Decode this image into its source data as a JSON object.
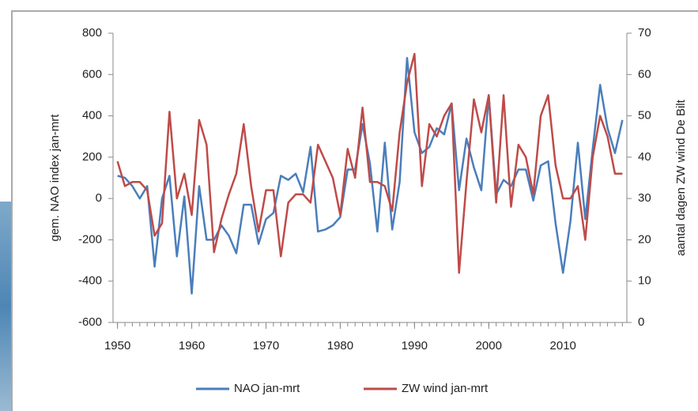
{
  "chart_data": {
    "type": "line",
    "y_label": "gem. NAO index jan-mrt",
    "y2_label": "aantal dagen ZW wind De Bilt",
    "x": [
      1950,
      1951,
      1952,
      1953,
      1954,
      1955,
      1956,
      1957,
      1958,
      1959,
      1960,
      1961,
      1962,
      1963,
      1964,
      1965,
      1966,
      1967,
      1968,
      1969,
      1970,
      1971,
      1972,
      1973,
      1974,
      1975,
      1976,
      1977,
      1978,
      1979,
      1980,
      1981,
      1982,
      1983,
      1984,
      1985,
      1986,
      1987,
      1988,
      1989,
      1990,
      1991,
      1992,
      1993,
      1994,
      1995,
      1996,
      1997,
      1998,
      1999,
      2000,
      2001,
      2002,
      2003,
      2004,
      2005,
      2006,
      2007,
      2008,
      2009,
      2010,
      2011,
      2012,
      2013,
      2014,
      2015,
      2016,
      2017,
      2018
    ],
    "series": [
      {
        "name": "NAO jan-mrt",
        "color": "#4a7ebb",
        "values": [
          110,
          100,
          60,
          0,
          60,
          -330,
          0,
          110,
          -280,
          10,
          -460,
          60,
          -200,
          -200,
          -130,
          -180,
          -265,
          -30,
          -30,
          -220,
          -100,
          -70,
          110,
          90,
          120,
          30,
          250,
          -160,
          -150,
          -130,
          -90,
          140,
          140,
          360,
          170,
          -160,
          270,
          -150,
          80,
          680,
          320,
          220,
          250,
          340,
          310,
          460,
          40,
          290,
          150,
          40,
          500,
          20,
          90,
          60,
          140,
          140,
          -10,
          160,
          180,
          -120,
          -360,
          -110,
          270,
          -100,
          240,
          550,
          340,
          220,
          380
        ]
      },
      {
        "name": "ZW wind jan-mrt",
        "color": "#be4b48",
        "axis": "y2",
        "values": [
          39,
          33,
          34,
          34,
          32,
          21,
          24,
          51,
          30,
          36,
          26,
          49,
          43,
          17,
          25,
          31,
          36,
          48,
          33,
          22,
          32,
          32,
          16,
          29,
          31,
          31,
          29,
          43,
          39,
          35,
          26,
          42,
          35,
          52,
          34,
          34,
          33,
          27,
          46,
          58,
          65,
          33,
          48,
          45,
          50,
          53,
          12,
          34,
          54,
          46,
          55,
          29,
          55,
          28,
          43,
          40,
          31,
          50,
          55,
          38,
          30,
          30,
          33,
          20,
          40,
          50,
          45,
          36,
          36
        ]
      }
    ],
    "xlim": [
      1949.4,
      2018.6
    ],
    "xticks": [
      1950,
      1960,
      1970,
      1980,
      1990,
      2000,
      2010
    ],
    "ylim": [
      -600,
      800
    ],
    "yticks": [
      -600,
      -400,
      -200,
      0,
      200,
      400,
      600,
      800
    ],
    "y2lim": [
      0,
      70
    ],
    "y2ticks": [
      0,
      10,
      20,
      30,
      40,
      50,
      60,
      70
    ],
    "legend": "bottom"
  }
}
